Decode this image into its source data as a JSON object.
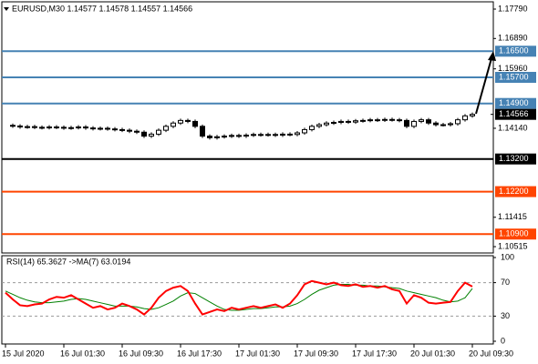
{
  "chart_data": [
    {
      "type": "candlestick",
      "title": "EURUSD,M30  1.14577 1.14578 1.14557 1.14566",
      "categories": [
        "15 Jul 2020",
        null,
        null,
        null,
        null,
        null,
        null,
        null,
        "16 Jul 01:30",
        null,
        null,
        null,
        null,
        null,
        null,
        null,
        "16 Jul 09:30",
        null,
        null,
        null,
        null,
        null,
        null,
        null,
        "16 Jul 17:30",
        null,
        null,
        null,
        null,
        null,
        null,
        null,
        "17 Jul 01:30",
        null,
        null,
        null,
        null,
        null,
        null,
        null,
        "17 Jul 09:30",
        null,
        null,
        null,
        null,
        null,
        null,
        null,
        "17 Jul 17:30",
        null,
        null,
        null,
        null,
        null,
        null,
        null,
        "20 Jul 01:30",
        null,
        null,
        null,
        null,
        null,
        null,
        null,
        "20 Jul 09:30"
      ],
      "close": [
        1.1423,
        1.1421,
        1.1418,
        1.1419,
        1.1417,
        1.1416,
        1.1418,
        1.1417,
        1.1415,
        1.1416,
        1.1418,
        1.1415,
        1.1413,
        1.1414,
        1.1412,
        1.141,
        1.1408,
        1.1405,
        1.1402,
        1.139,
        1.1396,
        1.1408,
        1.142,
        1.143,
        1.1438,
        1.1435,
        1.142,
        1.139,
        1.1385,
        1.1388,
        1.139,
        1.1392,
        1.139,
        1.1393,
        1.1395,
        1.1394,
        1.1395,
        1.1393,
        1.1396,
        1.1395,
        1.14,
        1.141,
        1.142,
        1.1425,
        1.143,
        1.1432,
        1.1435,
        1.1433,
        1.1437,
        1.1438,
        1.144,
        1.1439,
        1.1441,
        1.144,
        1.1438,
        1.142,
        1.1435,
        1.144,
        1.143,
        1.1425,
        1.1425,
        1.1428,
        1.144,
        1.1452,
        1.14566
      ],
      "color": "#000000",
      "ylim": [
        1.10321,
        1.18013
      ],
      "yticks": [
        {
          "value": 1.1779,
          "label": "1.17790"
        },
        {
          "value": 1.1689,
          "label": "1.16890"
        },
        {
          "value": 1.1596,
          "label": "1.15960"
        },
        {
          "value": 1.1414,
          "label": "1.14140"
        },
        1.11415,
        1.10515
      ],
      "levels": [
        {
          "value": 1.165,
          "label": "1.16500",
          "color": "#4682b4"
        },
        {
          "value": 1.157,
          "label": "1.15700",
          "color": "#4682b4"
        },
        {
          "value": 1.149,
          "label": "1.14900",
          "color": "#4682b4"
        },
        {
          "value": 1.132,
          "label": "1.13200",
          "color": "#000000"
        },
        {
          "value": 1.122,
          "label": "1.12200",
          "color": "#ff4500"
        },
        {
          "value": 1.109,
          "label": "1.10900",
          "color": "#ff4500"
        }
      ],
      "last_price": {
        "value": 1.14566,
        "label": "1.14566"
      }
    },
    {
      "type": "line",
      "title": "RSI(14) 65.3627  ->MA(7) 63.0194",
      "series": [
        {
          "color": "#ff0000",
          "values": [
            58,
            50,
            43,
            42,
            44,
            45,
            50,
            53,
            52,
            55,
            50,
            45,
            40,
            42,
            38,
            40,
            45,
            42,
            38,
            32,
            40,
            52,
            60,
            64,
            66,
            60,
            45,
            32,
            35,
            38,
            36,
            40,
            38,
            40,
            42,
            40,
            42,
            44,
            40,
            45,
            55,
            68,
            72,
            70,
            68,
            70,
            67,
            66,
            68,
            65,
            66,
            64,
            66,
            62,
            60,
            45,
            55,
            52,
            46,
            45,
            46,
            47,
            60,
            70,
            65.3627
          ]
        },
        {
          "color": "#008000",
          "values": [
            60,
            56,
            52,
            49,
            47,
            46,
            46,
            47,
            48,
            50,
            51,
            50,
            48,
            46,
            44,
            42,
            42,
            42,
            41,
            39,
            38,
            40,
            44,
            48,
            54,
            58,
            57,
            52,
            47,
            42,
            38,
            37,
            37,
            38,
            39,
            39,
            40,
            41,
            41,
            42,
            45,
            50,
            56,
            61,
            64,
            67,
            68,
            68,
            67,
            67,
            66,
            66,
            65,
            64,
            63,
            60,
            58,
            56,
            54,
            52,
            49,
            47,
            48,
            52,
            63.0194
          ]
        }
      ],
      "ylim": [
        0,
        100
      ],
      "yticks": [
        0,
        30,
        70,
        100
      ]
    }
  ]
}
